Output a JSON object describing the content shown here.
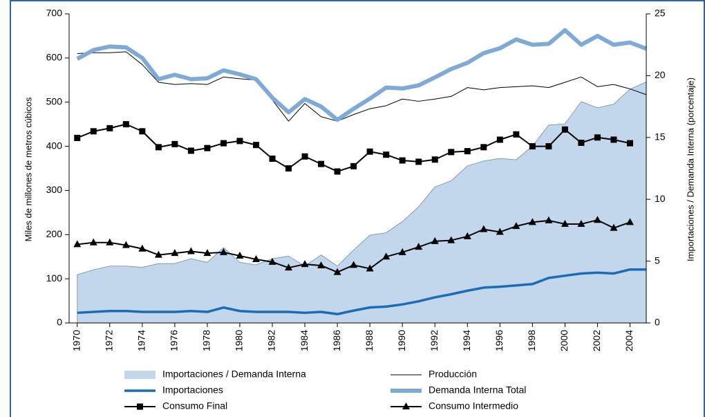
{
  "chart_data": {
    "type": "line",
    "ylabel": "Miles de millones de metros cúbicos",
    "y2label": "Importaciones / Demanda Interna (porcentaje)",
    "x": [
      1970,
      1971,
      1972,
      1973,
      1974,
      1975,
      1976,
      1977,
      1978,
      1979,
      1980,
      1981,
      1982,
      1983,
      1984,
      1985,
      1986,
      1987,
      1988,
      1989,
      1990,
      1991,
      1992,
      1993,
      1994,
      1995,
      1996,
      1997,
      1998,
      1999,
      2000,
      2001,
      2002,
      2003,
      2004,
      2005
    ],
    "xlim": [
      1969.5,
      2005
    ],
    "xticks": [
      1970,
      1972,
      1974,
      1976,
      1978,
      1980,
      1982,
      1984,
      1986,
      1988,
      1990,
      1992,
      1994,
      1996,
      1998,
      2000,
      2002,
      2004
    ],
    "ylim": [
      0,
      700
    ],
    "yticks": [
      0,
      100,
      200,
      300,
      400,
      500,
      600,
      700
    ],
    "y2lim": [
      0,
      25
    ],
    "y2ticks": [
      0,
      5,
      10,
      15,
      20,
      25
    ],
    "series": [
      {
        "name": "Importaciones / Demanda Interna",
        "type": "area",
        "axis": "y2",
        "color": "#c3d7ec",
        "values": [
          3.9,
          4.3,
          4.6,
          4.6,
          4.5,
          4.8,
          4.8,
          5.2,
          4.9,
          6.1,
          4.9,
          4.7,
          5.2,
          5.4,
          4.6,
          5.5,
          4.6,
          5.9,
          7.1,
          7.3,
          8.2,
          9.4,
          11.0,
          11.5,
          12.7,
          13.1,
          13.3,
          13.2,
          14.3,
          16.0,
          16.1,
          17.9,
          17.4,
          17.7,
          18.9,
          19.5
        ]
      },
      {
        "name": "Producción",
        "type": "line",
        "color": "#000000",
        "linewidth": 1,
        "values": [
          610,
          612,
          612,
          614,
          585,
          545,
          540,
          542,
          540,
          557,
          553,
          550,
          505,
          457,
          497,
          467,
          457,
          472,
          485,
          492,
          507,
          502,
          507,
          513,
          533,
          528,
          533,
          535,
          537,
          533,
          545,
          557,
          535,
          540,
          530,
          517
        ]
      },
      {
        "name": "Importaciones",
        "type": "line",
        "color": "#1a6bb8",
        "linewidth": 3.5,
        "values": [
          23,
          25,
          27,
          27,
          25,
          25,
          25,
          27,
          25,
          35,
          27,
          25,
          25,
          25,
          23,
          25,
          20,
          28,
          35,
          37,
          42,
          49,
          58,
          65,
          73,
          80,
          82,
          85,
          88,
          102,
          107,
          112,
          114,
          112,
          121,
          121
        ]
      },
      {
        "name": "Demanda Interna Total",
        "type": "line",
        "color": "#80aad6",
        "linewidth": 6,
        "values": [
          598,
          618,
          626,
          624,
          600,
          552,
          562,
          552,
          554,
          572,
          563,
          552,
          510,
          477,
          507,
          490,
          460,
          485,
          508,
          533,
          531,
          538,
          556,
          575,
          589,
          611,
          622,
          642,
          630,
          632,
          663,
          630,
          650,
          630,
          635,
          621
        ]
      },
      {
        "name": "Consumo Final",
        "type": "line",
        "color": "#000000",
        "linewidth": 2,
        "marker": "square",
        "values": [
          419,
          434,
          441,
          450,
          434,
          398,
          405,
          390,
          396,
          407,
          412,
          403,
          372,
          350,
          377,
          360,
          343,
          355,
          388,
          381,
          368,
          365,
          370,
          387,
          389,
          398,
          415,
          427,
          400,
          400,
          438,
          408,
          420,
          415,
          407,
          null
        ]
      },
      {
        "name": "Consumo Intermedio",
        "type": "line",
        "color": "#000000",
        "linewidth": 2,
        "marker": "triangle",
        "values": [
          178,
          182,
          182,
          176,
          168,
          154,
          158,
          162,
          158,
          160,
          152,
          144,
          138,
          125,
          133,
          130,
          115,
          131,
          123,
          150,
          160,
          172,
          185,
          187,
          196,
          212,
          206,
          219,
          228,
          232,
          224,
          224,
          233,
          215,
          228,
          null
        ]
      }
    ]
  }
}
